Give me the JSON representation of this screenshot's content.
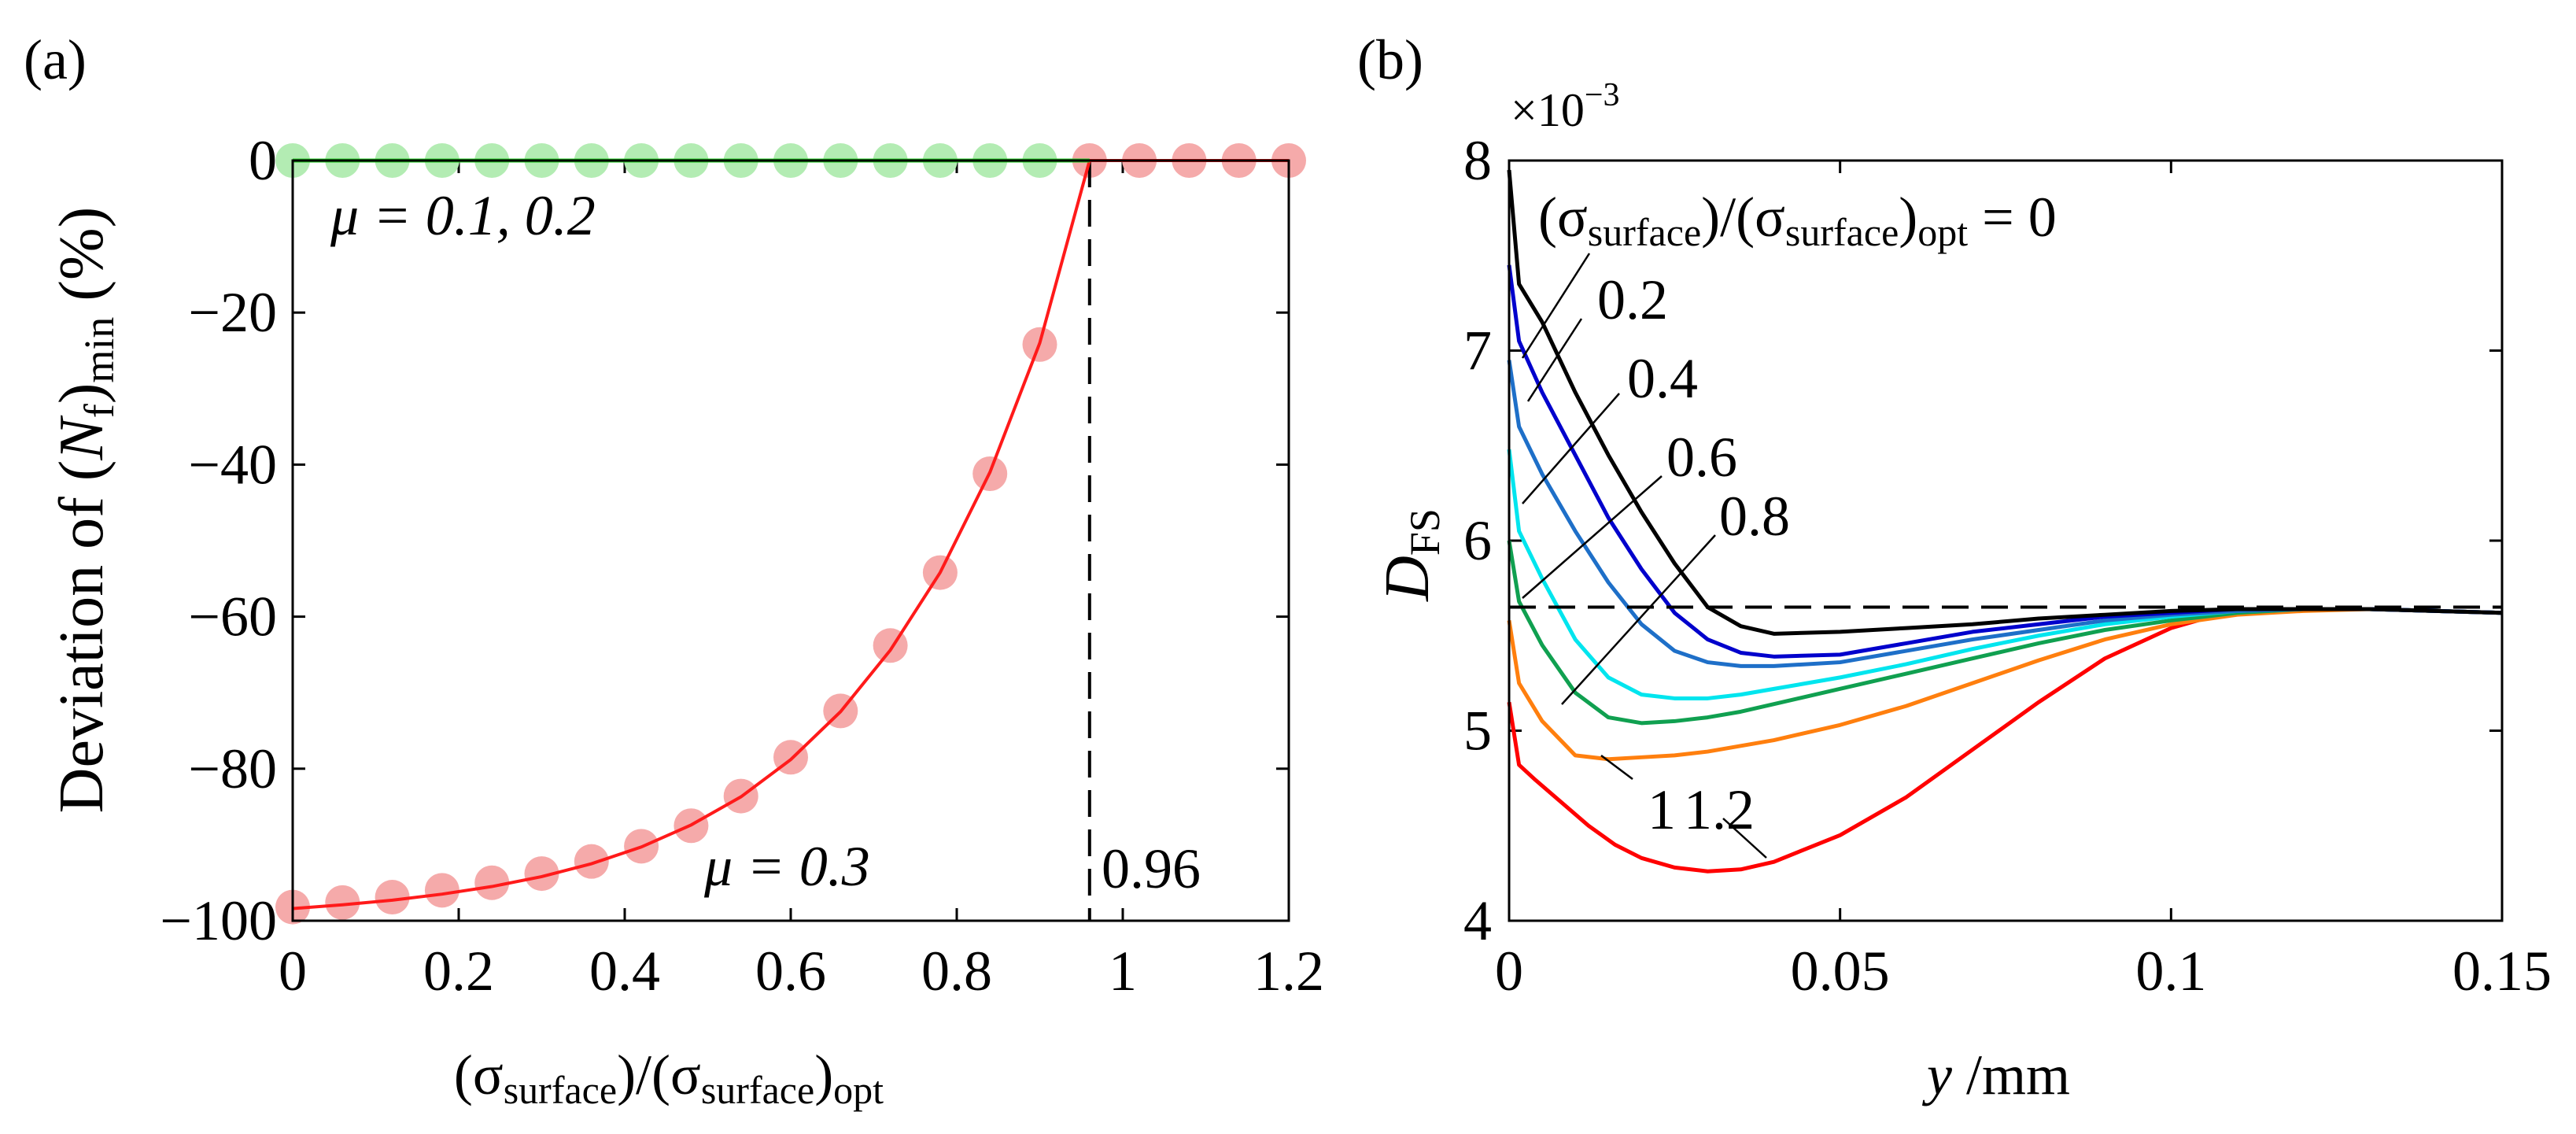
{
  "chart_data": [
    {
      "panel": "(a)",
      "type": "line+scatter",
      "xlabel_parts": [
        "(σ",
        "surface",
        ")/(σ",
        "surface",
        ")",
        "opt"
      ],
      "ylabel_parts": [
        "Deviation of (",
        "N",
        "f",
        ")",
        "min",
        " (%)"
      ],
      "xlim": [
        0,
        1.2
      ],
      "ylim": [
        -100,
        0
      ],
      "xticks": [
        0,
        0.2,
        0.4,
        0.6,
        0.8,
        1,
        1.2
      ],
      "xtick_labels": [
        "0",
        "0.2",
        "0.4",
        "0.6",
        "0.8",
        "1",
        "1.2"
      ],
      "yticks": [
        0,
        -20,
        -40,
        -60,
        -80,
        -100
      ],
      "ytick_labels": [
        "0",
        "−20",
        "−40",
        "−60",
        "−80",
        "−100"
      ],
      "annotations": {
        "mu_top": "μ = 0.1, 0.2",
        "mu_bottom": "μ = 0.3",
        "vline_value": 0.96,
        "vline_label": "0.96"
      },
      "colors": {
        "green_line": "#22cc22",
        "green_points": "#b3ecb3",
        "red_line": "#ff1a1a",
        "red_points": "#f5aaaa",
        "dashed": "#000000"
      },
      "series": [
        {
          "name": "μ = 0.1, 0.2 (points)",
          "x": [
            0,
            0.06,
            0.12,
            0.18,
            0.24,
            0.3,
            0.36,
            0.42,
            0.48,
            0.54,
            0.6,
            0.66,
            0.72,
            0.78,
            0.84,
            0.9
          ],
          "y": [
            0,
            0,
            0,
            0,
            0,
            0,
            0,
            0,
            0,
            0,
            0,
            0,
            0,
            0,
            0,
            0
          ]
        },
        {
          "name": "μ = 0.1, 0.2 (line)",
          "x": [
            0,
            0.96
          ],
          "y": [
            0,
            0
          ]
        },
        {
          "name": "μ = 0.3 (points)",
          "x": [
            0,
            0.06,
            0.12,
            0.18,
            0.24,
            0.3,
            0.36,
            0.42,
            0.48,
            0.54,
            0.6,
            0.66,
            0.72,
            0.78,
            0.84,
            0.9,
            0.96,
            1.02,
            1.08,
            1.14,
            1.2
          ],
          "y": [
            -98.2,
            -97.6,
            -96.9,
            -96.0,
            -95.0,
            -93.8,
            -92.2,
            -90.2,
            -87.5,
            -83.6,
            -78.5,
            -72.4,
            -63.8,
            -54.2,
            -41.2,
            -24.2,
            0,
            0,
            0,
            0,
            0
          ]
        },
        {
          "name": "μ = 0.3 (line)",
          "x": [
            0,
            0.06,
            0.12,
            0.18,
            0.24,
            0.3,
            0.36,
            0.42,
            0.48,
            0.54,
            0.6,
            0.66,
            0.72,
            0.78,
            0.84,
            0.9,
            0.96,
            1.02,
            1.08,
            1.14,
            1.2
          ],
          "y": [
            -98.4,
            -97.9,
            -97.3,
            -96.5,
            -95.5,
            -94.2,
            -92.5,
            -90.3,
            -87.4,
            -83.7,
            -78.8,
            -72.5,
            -64.4,
            -54.2,
            -41.0,
            -24.0,
            0,
            0,
            0,
            0,
            0
          ]
        }
      ]
    },
    {
      "panel": "(b)",
      "type": "line",
      "xlabel_parts": [
        "y",
        " /mm"
      ],
      "ylabel_parts": [
        "D",
        "FS"
      ],
      "multiplier": "×10",
      "multiplier_exp": "−3",
      "xlim": [
        0,
        0.15
      ],
      "ylim": [
        4,
        8
      ],
      "xticks": [
        0,
        0.05,
        0.1,
        0.15
      ],
      "xtick_labels": [
        "0",
        "0.05",
        "0.1",
        "0.15"
      ],
      "yticks": [
        4,
        5,
        6,
        7,
        8
      ],
      "ytick_labels": [
        "4",
        "5",
        "6",
        "7",
        "8"
      ],
      "reference_line": {
        "y": 5.65,
        "style": "dashed",
        "color": "#000000"
      },
      "legend_title_parts": [
        "(σ",
        "surface",
        ")/(σ",
        "surface",
        ")",
        "opt",
        " = 0"
      ],
      "curve_labels": [
        "0.2",
        "0.4",
        "0.6",
        "0.8",
        "1",
        "1.2"
      ],
      "series": [
        {
          "name": "0",
          "color": "#000000",
          "x": [
            0,
            0.0015,
            0.005,
            0.01,
            0.015,
            0.02,
            0.025,
            0.03,
            0.035,
            0.04,
            0.05,
            0.06,
            0.07,
            0.08,
            0.09,
            0.1,
            0.11,
            0.12,
            0.13,
            0.14,
            0.15
          ],
          "y": [
            7.95,
            7.35,
            7.15,
            6.78,
            6.45,
            6.15,
            5.88,
            5.65,
            5.55,
            5.51,
            5.52,
            5.54,
            5.56,
            5.59,
            5.61,
            5.63,
            5.64,
            5.64,
            5.64,
            5.63,
            5.62
          ]
        },
        {
          "name": "0.2",
          "color": "#0000cc",
          "x": [
            0,
            0.0015,
            0.005,
            0.01,
            0.015,
            0.02,
            0.025,
            0.03,
            0.035,
            0.04,
            0.05,
            0.06,
            0.07,
            0.08,
            0.09,
            0.1,
            0.11,
            0.12,
            0.13,
            0.14,
            0.15
          ],
          "y": [
            7.45,
            7.05,
            6.78,
            6.45,
            6.12,
            5.85,
            5.62,
            5.48,
            5.41,
            5.39,
            5.4,
            5.46,
            5.52,
            5.56,
            5.6,
            5.62,
            5.64,
            5.64,
            5.64,
            5.63,
            5.62
          ]
        },
        {
          "name": "0.4",
          "color": "#1e6fc8",
          "x": [
            0,
            0.0015,
            0.005,
            0.01,
            0.015,
            0.02,
            0.025,
            0.03,
            0.035,
            0.04,
            0.05,
            0.06,
            0.07,
            0.08,
            0.09,
            0.1,
            0.11,
            0.12,
            0.13,
            0.14,
            0.15
          ],
          "y": [
            6.95,
            6.6,
            6.35,
            6.05,
            5.78,
            5.56,
            5.42,
            5.36,
            5.34,
            5.34,
            5.36,
            5.42,
            5.48,
            5.53,
            5.58,
            5.61,
            5.63,
            5.64,
            5.64,
            5.63,
            5.62
          ]
        },
        {
          "name": "0.6",
          "color": "#00e5ee",
          "x": [
            0,
            0.0015,
            0.005,
            0.01,
            0.015,
            0.02,
            0.025,
            0.03,
            0.035,
            0.04,
            0.05,
            0.06,
            0.07,
            0.08,
            0.09,
            0.1,
            0.11,
            0.12,
            0.13,
            0.14,
            0.15
          ],
          "y": [
            6.48,
            6.05,
            5.8,
            5.48,
            5.28,
            5.19,
            5.17,
            5.17,
            5.19,
            5.22,
            5.28,
            5.35,
            5.43,
            5.5,
            5.56,
            5.6,
            5.63,
            5.64,
            5.64,
            5.63,
            5.62
          ]
        },
        {
          "name": "0.8",
          "color": "#10a050",
          "x": [
            0,
            0.0015,
            0.005,
            0.01,
            0.015,
            0.02,
            0.025,
            0.03,
            0.035,
            0.04,
            0.05,
            0.06,
            0.07,
            0.08,
            0.09,
            0.1,
            0.11,
            0.12,
            0.13,
            0.14,
            0.15
          ],
          "y": [
            6.0,
            5.68,
            5.45,
            5.2,
            5.07,
            5.04,
            5.05,
            5.07,
            5.1,
            5.14,
            5.22,
            5.3,
            5.38,
            5.46,
            5.53,
            5.58,
            5.62,
            5.64,
            5.64,
            5.63,
            5.62
          ]
        },
        {
          "name": "1",
          "color": "#ff7f0e",
          "x": [
            0,
            0.0015,
            0.005,
            0.01,
            0.015,
            0.02,
            0.025,
            0.03,
            0.035,
            0.04,
            0.05,
            0.06,
            0.07,
            0.08,
            0.09,
            0.1,
            0.11,
            0.12,
            0.13,
            0.14,
            0.15
          ],
          "y": [
            5.58,
            5.25,
            5.05,
            4.87,
            4.85,
            4.86,
            4.87,
            4.89,
            4.92,
            4.95,
            5.03,
            5.13,
            5.25,
            5.37,
            5.48,
            5.56,
            5.61,
            5.63,
            5.64,
            5.63,
            5.62
          ]
        },
        {
          "name": "1.2",
          "color": "#ff0000",
          "x": [
            0,
            0.0015,
            0.004,
            0.008,
            0.012,
            0.016,
            0.02,
            0.025,
            0.03,
            0.035,
            0.04,
            0.05,
            0.06,
            0.07,
            0.08,
            0.09,
            0.1,
            0.105,
            0.11,
            0.12,
            0.13,
            0.14,
            0.15
          ],
          "y": [
            5.15,
            4.82,
            4.74,
            4.62,
            4.5,
            4.4,
            4.33,
            4.28,
            4.26,
            4.27,
            4.31,
            4.45,
            4.65,
            4.9,
            5.15,
            5.38,
            5.54,
            5.59,
            5.62,
            5.64,
            5.64,
            5.63,
            5.62
          ]
        }
      ]
    }
  ]
}
